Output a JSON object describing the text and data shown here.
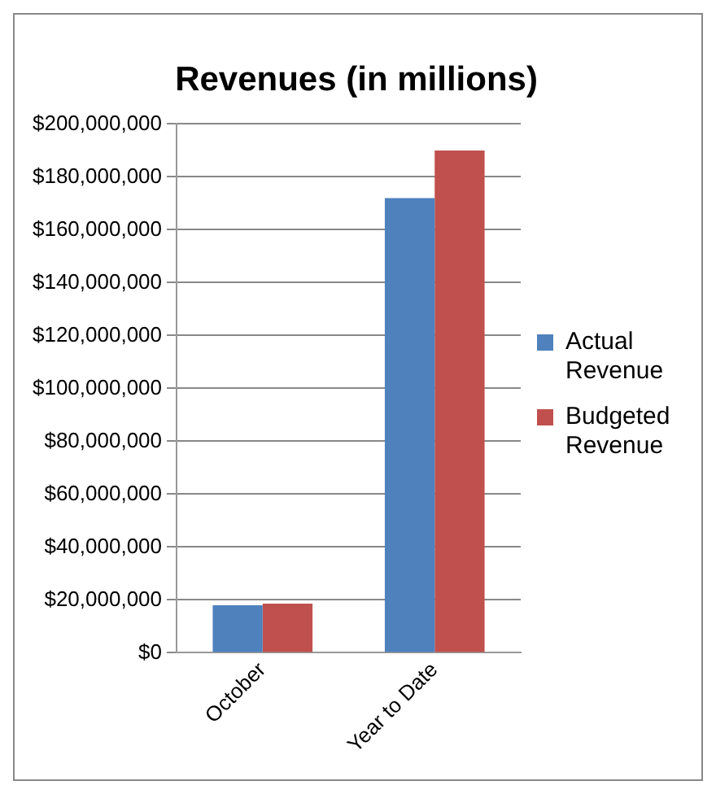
{
  "chart_data": {
    "type": "bar",
    "title": "Revenues (in millions)",
    "categories": [
      "October",
      "Year to Date"
    ],
    "series": [
      {
        "name": "Actual Revenue",
        "color": "#4f81bd",
        "values": [
          18000000,
          172000000
        ]
      },
      {
        "name": "Budgeted Revenue",
        "color": "#c0504d",
        "values": [
          18600000,
          190000000
        ]
      }
    ],
    "ylim": [
      0,
      200000000
    ],
    "yticks": [
      {
        "value": 0,
        "label": "$0"
      },
      {
        "value": 20000000,
        "label": "$20,000,000"
      },
      {
        "value": 40000000,
        "label": "$40,000,000"
      },
      {
        "value": 60000000,
        "label": "$60,000,000"
      },
      {
        "value": 80000000,
        "label": "$80,000,000"
      },
      {
        "value": 100000000,
        "label": "$100,000,000"
      },
      {
        "value": 120000000,
        "label": "$120,000,000"
      },
      {
        "value": 140000000,
        "label": "$140,000,000"
      },
      {
        "value": 160000000,
        "label": "$160,000,000"
      },
      {
        "value": 180000000,
        "label": "$180,000,000"
      },
      {
        "value": 200000000,
        "label": "$200,000,000"
      }
    ],
    "grid": "y",
    "legend": "right"
  }
}
